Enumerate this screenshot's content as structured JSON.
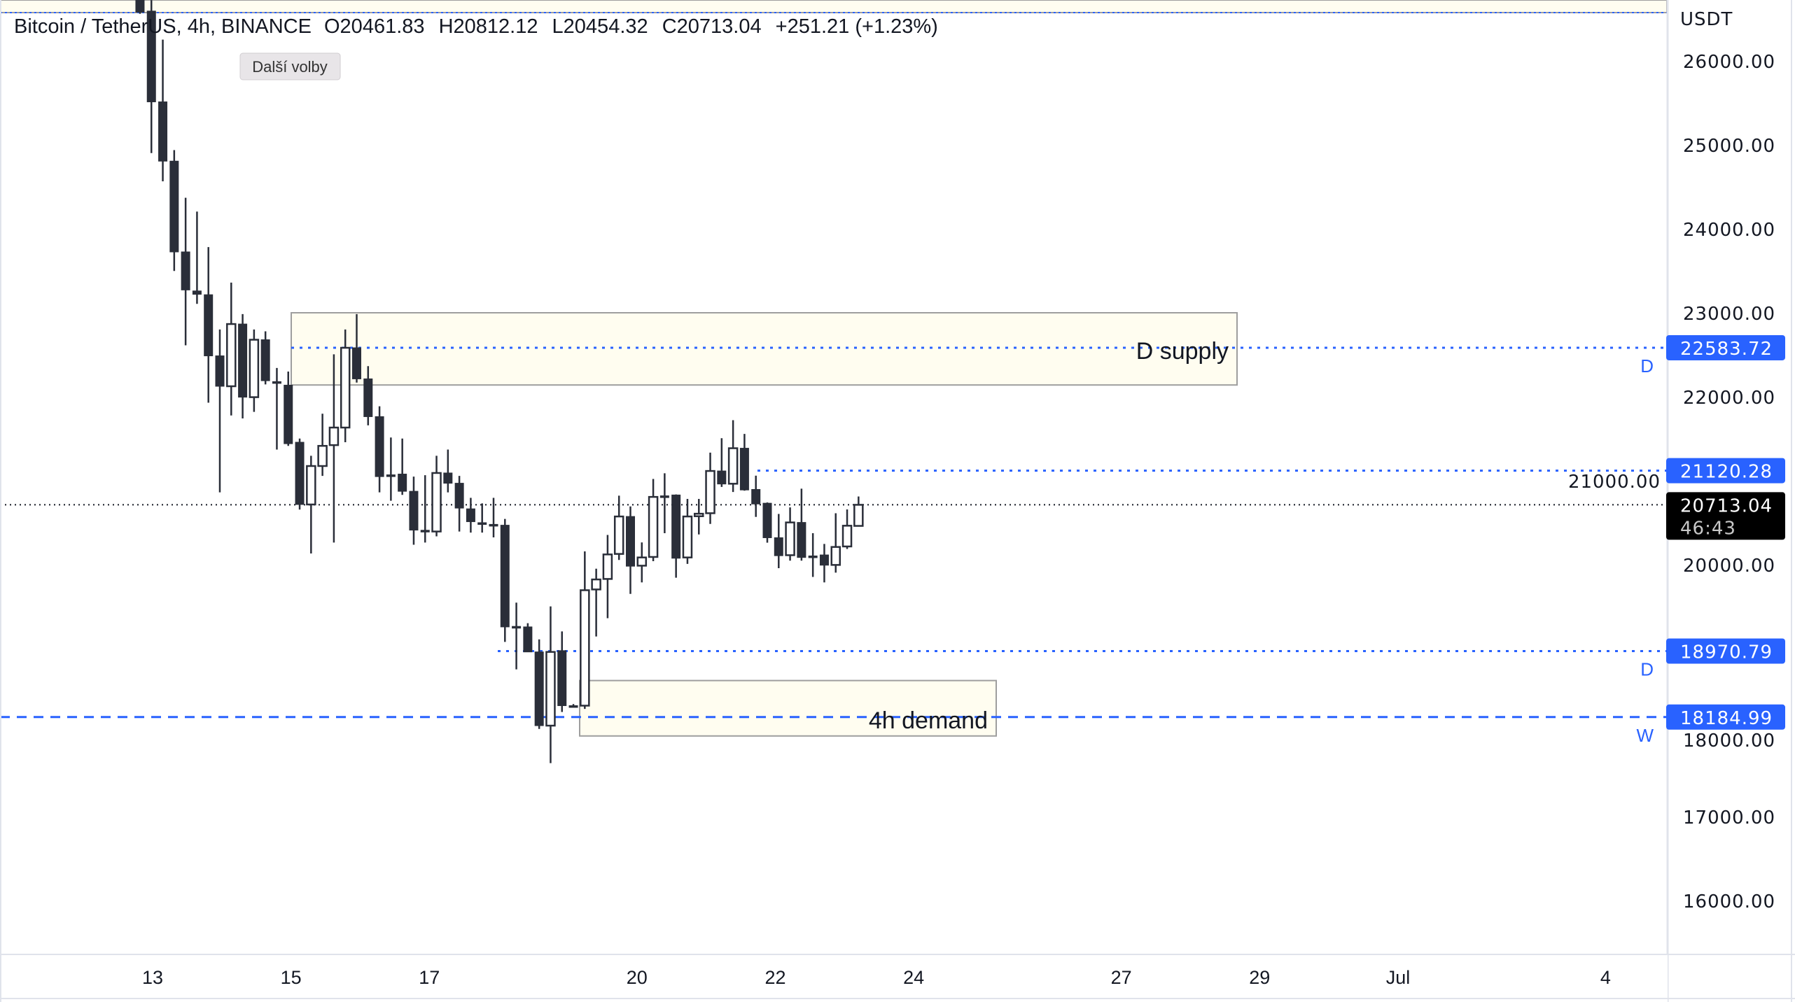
{
  "header": {
    "symbol": "Bitcoin / TetherUS, 4h, BINANCE",
    "open": "O20461.83",
    "high": "H20812.12",
    "low": "L20454.32",
    "close": "C20713.04",
    "change": "+251.21 (+1.23%)",
    "more_options_tooltip": "Další volby"
  },
  "price_axis": {
    "currency": "USDT",
    "ticks": [
      "26000.00",
      "25000.00",
      "24000.00",
      "23000.00",
      "22000.00",
      "21000.00",
      "20000.00",
      "18000.00",
      "17000.00",
      "16000.00"
    ],
    "current_price": "20713.04",
    "countdown": "46:43"
  },
  "time_axis": {
    "ticks": [
      "13",
      "15",
      "17",
      "20",
      "22",
      "24",
      "27",
      "29",
      "Jul",
      "4"
    ]
  },
  "levels": [
    {
      "price": 22583.72,
      "label": "22583.72",
      "tag": "D",
      "style": "dotted"
    },
    {
      "price": 21120.28,
      "label": "21120.28",
      "tag": "",
      "style": "dotted"
    },
    {
      "price": 18970.79,
      "label": "18970.79",
      "tag": "D",
      "style": "dotted"
    },
    {
      "price": 18184.99,
      "label": "18184.99",
      "tag": "W",
      "style": "dashed"
    }
  ],
  "zones": [
    {
      "label": "D supply",
      "top": 23000,
      "bottom": 22140
    },
    {
      "label": "4h demand",
      "top": 18620,
      "bottom": 17960
    }
  ],
  "colors": {
    "level": "#2962ff",
    "bear": "#2a2e39",
    "bull": "#ffffff",
    "zone_fill": "#fffdf0",
    "current_badge": "#000000"
  },
  "chart_data": {
    "type": "candlestick",
    "interval": "4h",
    "ylim": [
      15500,
      26700
    ],
    "ohlc": [
      [
        27500,
        27700,
        26560,
        26580
      ],
      [
        26593,
        26724,
        24902,
        25512
      ],
      [
        25512,
        26253,
        24566,
        24806
      ],
      [
        24806,
        24937,
        23498,
        23725
      ],
      [
        23725,
        24370,
        22613,
        23272
      ],
      [
        23260,
        24205,
        23106,
        23220
      ],
      [
        23215,
        23782,
        21929,
        22487
      ],
      [
        22487,
        22801,
        20861,
        22125
      ],
      [
        22125,
        23359,
        21777,
        22866
      ],
      [
        22866,
        22984,
        21742,
        21995
      ],
      [
        21995,
        22801,
        21820,
        22679
      ],
      [
        22679,
        22779,
        22147,
        22191
      ],
      [
        22180,
        22343,
        21371,
        22160
      ],
      [
        22138,
        22300,
        21415,
        21441
      ],
      [
        21458,
        21502,
        20656,
        20717
      ],
      [
        20717,
        21297,
        20133,
        21175
      ],
      [
        21175,
        21798,
        21057,
        21415
      ],
      [
        21424,
        22505,
        20264,
        21633
      ],
      [
        21633,
        22801,
        21458,
        22583
      ],
      [
        22583,
        22984,
        22169,
        22213
      ],
      [
        22213,
        22365,
        21659,
        21763
      ],
      [
        21763,
        21886,
        20861,
        21049
      ],
      [
        21070,
        21515,
        20761,
        21060
      ],
      [
        21079,
        21502,
        20831,
        20874
      ],
      [
        20874,
        21049,
        20238,
        20412
      ],
      [
        20410,
        21066,
        20264,
        20400
      ],
      [
        20395,
        21297,
        20338,
        21092
      ],
      [
        21092,
        21371,
        20861,
        20970
      ],
      [
        20970,
        21057,
        20395,
        20674
      ],
      [
        20665,
        20796,
        20382,
        20512
      ],
      [
        20500,
        20730,
        20382,
        20490
      ],
      [
        20480,
        20796,
        20325,
        20470
      ],
      [
        20470,
        20545,
        19080,
        19259
      ],
      [
        19265,
        19548,
        18753,
        19255
      ],
      [
        19259,
        19303,
        18961,
        18961
      ],
      [
        18961,
        19110,
        18044,
        18083
      ],
      [
        18083,
        19503,
        17636,
        18961
      ],
      [
        18976,
        19205,
        18246,
        18321
      ],
      [
        18321,
        18340,
        18300,
        18315
      ],
      [
        18321,
        20158,
        18282,
        19696
      ],
      [
        19705,
        19952,
        19145,
        19824
      ],
      [
        19830,
        20354,
        19363,
        20122
      ],
      [
        20128,
        20822,
        20056,
        20574
      ],
      [
        20574,
        20694,
        19652,
        19982
      ],
      [
        19988,
        20265,
        19789,
        20086
      ],
      [
        20092,
        21021,
        20042,
        20807
      ],
      [
        20820,
        21089,
        20375,
        20817
      ],
      [
        20830,
        20836,
        19845,
        20077
      ],
      [
        20086,
        20783,
        20009,
        20574
      ],
      [
        20577,
        20783,
        20360,
        20607
      ],
      [
        20613,
        21334,
        20485,
        21116
      ],
      [
        21116,
        21506,
        20926,
        20961
      ],
      [
        20964,
        21721,
        20866,
        21387
      ],
      [
        21387,
        21557,
        20881,
        20890
      ],
      [
        20896,
        21060,
        20569,
        20723
      ],
      [
        20732,
        20741,
        20262,
        20321
      ],
      [
        20321,
        20604,
        19958,
        20107
      ],
      [
        20113,
        20682,
        20048,
        20503
      ],
      [
        20503,
        20905,
        20048,
        20086
      ],
      [
        20104,
        20375,
        19854,
        20100
      ],
      [
        20116,
        20247,
        19789,
        19994
      ],
      [
        19997,
        20613,
        19905,
        20211
      ],
      [
        20217,
        20658,
        20187,
        20464
      ],
      [
        20461.83,
        20812.12,
        20454.32,
        20713.04
      ]
    ]
  }
}
